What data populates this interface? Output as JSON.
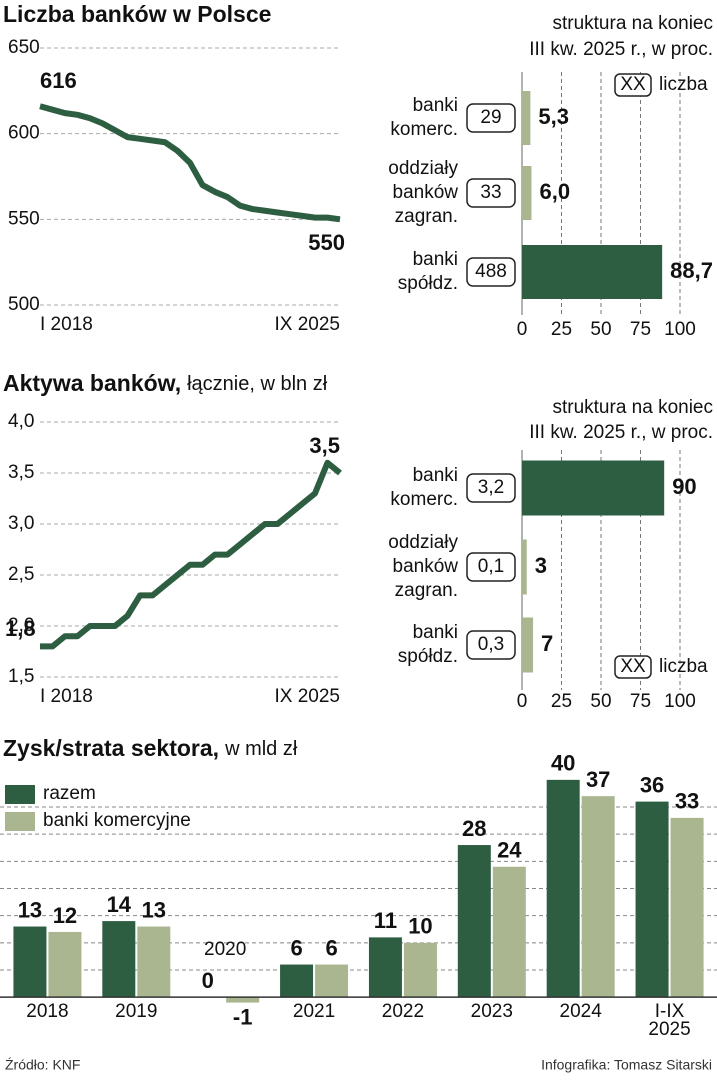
{
  "chart_data": [
    {
      "type": "line",
      "title": "Liczba banków w Polsce",
      "categories": [
        "I 2018",
        null,
        null,
        null,
        null,
        null,
        null,
        null,
        null,
        null,
        null,
        null,
        null,
        null,
        null,
        null,
        null,
        null,
        null,
        null,
        null,
        null,
        null,
        null,
        "IX 2025"
      ],
      "values": [
        616,
        614,
        612,
        611,
        609,
        606,
        602,
        598,
        597,
        596,
        595,
        590,
        583,
        570,
        566,
        563,
        558,
        556,
        555,
        554,
        553,
        552,
        551,
        551,
        550
      ],
      "color": "#2e5e42",
      "ylim": [
        500,
        650
      ],
      "yticks": [
        500,
        550,
        600,
        650
      ],
      "grid": true
    },
    {
      "type": "barh",
      "title": [
        "struktura na koniec",
        "III kw. 2025 r., w proc."
      ],
      "categories": [
        [
          "banki",
          "komerc."
        ],
        [
          "oddziały",
          "banków",
          "zagran."
        ],
        [
          "banki",
          "spółdz."
        ]
      ],
      "values": [
        5.3,
        6.0,
        88.7
      ],
      "value_labels": [
        "5,3",
        "6,0",
        "88,7"
      ],
      "box_labels": [
        "29",
        "33",
        "488"
      ],
      "box_legend": {
        "symbol": "XX",
        "label": "liczba"
      },
      "colors": [
        "#a9b690",
        "#a9b690",
        "#2e5e42"
      ],
      "xlim": [
        0,
        100
      ],
      "xticks": [
        0,
        25,
        50,
        75,
        100
      ],
      "grid": true
    },
    {
      "type": "line",
      "title": "Aktywa banków,",
      "subtitle": "łącznie, w bln zł",
      "categories": [
        "I 2018",
        null,
        null,
        null,
        null,
        null,
        null,
        null,
        null,
        null,
        null,
        null,
        null,
        null,
        null,
        null,
        null,
        null,
        null,
        null,
        null,
        null,
        null,
        null,
        "IX 2025"
      ],
      "values": [
        1.8,
        1.8,
        1.9,
        1.9,
        2.0,
        2.0,
        2.0,
        2.1,
        2.3,
        2.3,
        2.4,
        2.5,
        2.6,
        2.6,
        2.7,
        2.7,
        2.8,
        2.9,
        3.0,
        3.0,
        3.1,
        3.2,
        3.3,
        3.6,
        3.5
      ],
      "value_labels": [
        "1,8",
        null,
        null,
        null,
        null,
        null,
        null,
        null,
        null,
        null,
        null,
        null,
        null,
        null,
        null,
        null,
        null,
        null,
        null,
        null,
        null,
        null,
        null,
        null,
        "3,5"
      ],
      "color": "#2e5e42",
      "ylim": [
        1.5,
        4.0
      ],
      "yticks": [
        {
          "value": 1.5,
          "label": "1,5"
        },
        {
          "value": 2.0,
          "label": "2,0"
        },
        {
          "value": 2.5,
          "label": "2,5"
        },
        {
          "value": 3.0,
          "label": "3,0"
        },
        {
          "value": 3.5,
          "label": "3,5"
        },
        {
          "value": 4.0,
          "label": "4,0"
        }
      ],
      "grid": true
    },
    {
      "type": "barh",
      "title": [
        "struktura na koniec",
        "III kw. 2025 r., w proc."
      ],
      "categories": [
        [
          "banki",
          "komerc."
        ],
        [
          "oddziały",
          "banków",
          "zagran."
        ],
        [
          "banki",
          "spółdz."
        ]
      ],
      "values": [
        90,
        3,
        7
      ],
      "box_labels": [
        "3,2",
        "0,1",
        "0,3"
      ],
      "box_legend": {
        "symbol": "XX",
        "label": "liczba"
      },
      "colors": [
        "#2e5e42",
        "#a9b690",
        "#a9b690"
      ],
      "xlim": [
        0,
        100
      ],
      "xticks": [
        0,
        25,
        50,
        75,
        100
      ],
      "grid": true
    },
    {
      "type": "groupedbar",
      "title": "Zysk/strata sektora,",
      "subtitle": "w mld zł",
      "categories": [
        [
          "2018"
        ],
        [
          "2019"
        ],
        [
          "2020"
        ],
        [
          "2021"
        ],
        [
          "2022"
        ],
        [
          "2023"
        ],
        [
          "2024"
        ],
        [
          "I-IX",
          "2025"
        ]
      ],
      "series": [
        {
          "name": "razem",
          "color": "#2e5e42",
          "values": [
            13,
            14,
            0,
            6,
            11,
            28,
            40,
            36
          ]
        },
        {
          "name": "banki komercyjne",
          "color": "#a9b690",
          "values": [
            12,
            13,
            -1,
            6,
            10,
            24,
            37,
            33
          ]
        }
      ],
      "ylim": [
        -2,
        42
      ],
      "yticks": [
        5,
        10,
        15,
        20,
        25,
        30,
        35
      ],
      "grid": true
    }
  ],
  "footer": {
    "source": "Źródło: KNF",
    "credit": "Infografika: Tomasz Sitarski"
  }
}
